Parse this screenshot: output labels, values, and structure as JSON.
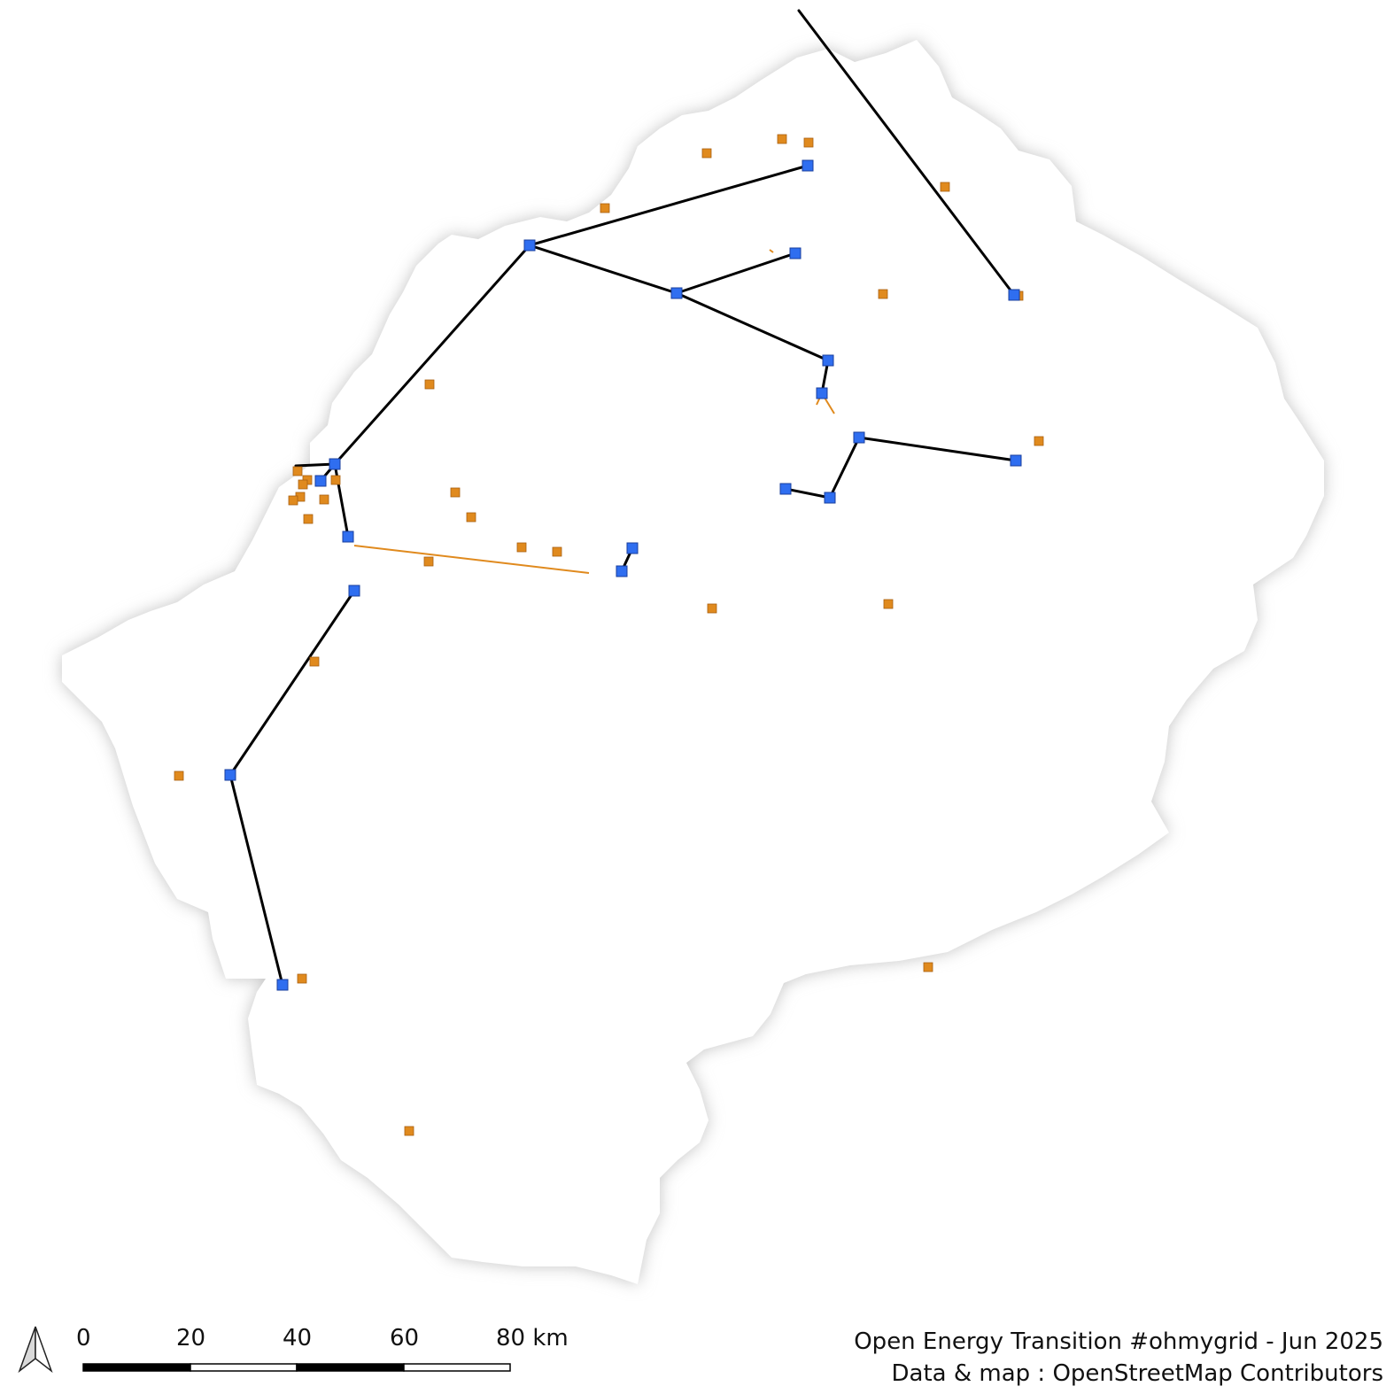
{
  "map": {
    "country_fill": "#ffffff",
    "country_halo": "#bdbdbd",
    "line_color": "#000000",
    "minor_line_color": "#e08a1e",
    "substation_color": "#2f6ef0",
    "plant_color": "#e08a1e"
  },
  "scale_bar": {
    "labels": [
      "0",
      "20",
      "40",
      "60",
      "80 km"
    ]
  },
  "north_arrow": {
    "icon": "north-arrow-icon"
  },
  "credits": {
    "title": "Open Energy Transition #ohmygrid - Jun 2025",
    "source": "Data & map : OpenStreetMap Contributors"
  }
}
